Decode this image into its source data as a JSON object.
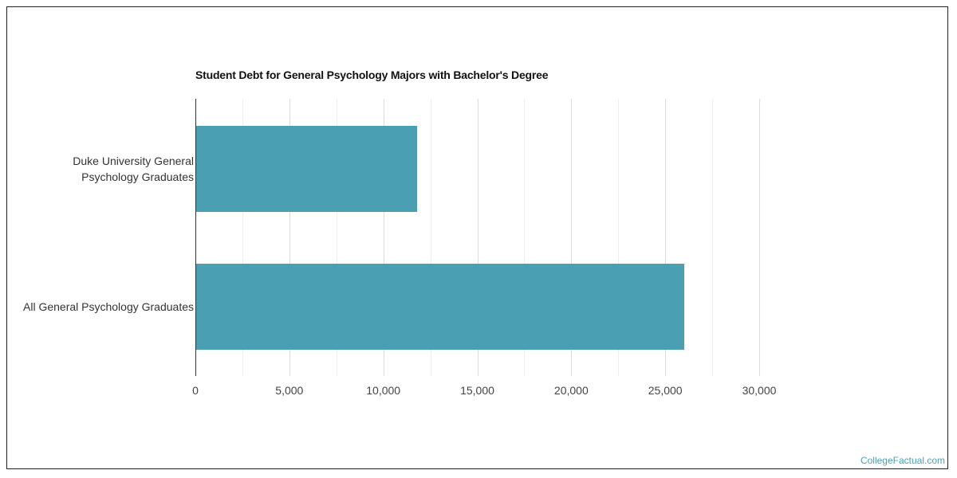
{
  "chart_data": {
    "type": "bar",
    "orientation": "horizontal",
    "title": "Student Debt for General Psychology Majors with Bachelor's Degree",
    "categories": [
      "Duke University General Psychology Graduates",
      "All General Psychology Graduates"
    ],
    "category_lines": [
      [
        "Duke University General",
        "Psychology Graduates"
      ],
      [
        "All General Psychology Graduates"
      ]
    ],
    "values": [
      11800,
      26000
    ],
    "xlabel": "",
    "ylabel": "",
    "xlim": [
      0,
      30000
    ],
    "x_ticks": [
      "0",
      "5,000",
      "10,000",
      "15,000",
      "20,000",
      "25,000",
      "30,000"
    ],
    "grid": true,
    "legend": "none",
    "bar_color": "#4aa0b2"
  },
  "watermark": "CollegeFactual.com"
}
